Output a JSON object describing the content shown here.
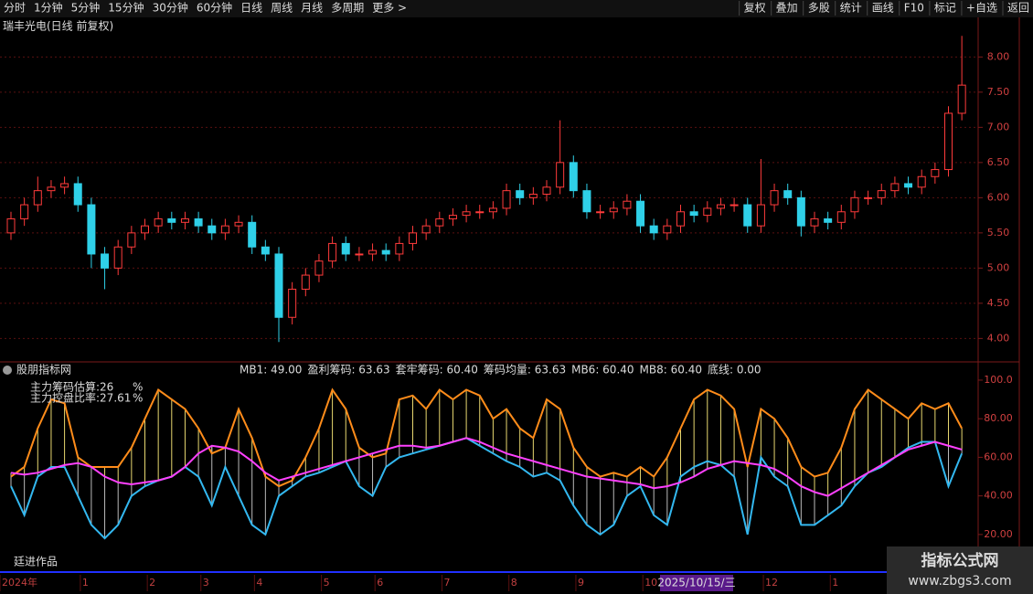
{
  "toolbar": {
    "periods": [
      "分时",
      "1分钟",
      "5分钟",
      "15分钟",
      "30分钟",
      "60分钟",
      "日线",
      "周线",
      "月线",
      "多周期",
      "更多 >"
    ],
    "active_period": 6,
    "actions": [
      "复权",
      "叠加",
      "多股",
      "统计",
      "画线",
      "F10",
      "标记",
      "+自选",
      "返回"
    ]
  },
  "chart_data": [
    {
      "type": "candlestick",
      "title": "瑞丰光电(日线 前复权)",
      "up_color": "#ff3b3b",
      "down_color": "#2fd0e8",
      "open": [
        5.5,
        5.7,
        5.9,
        6.1,
        6.15,
        6.2,
        5.9,
        5.2,
        5.0,
        5.3,
        5.5,
        5.6,
        5.7,
        5.65,
        5.7,
        5.6,
        5.5,
        5.6,
        5.65,
        5.3,
        5.2,
        4.3,
        4.7,
        4.9,
        5.1,
        5.35,
        5.2,
        5.2,
        5.25,
        5.2,
        5.35,
        5.5,
        5.6,
        5.7,
        5.75,
        5.8,
        5.8,
        5.85,
        6.1,
        6.0,
        6.05,
        6.15,
        6.5,
        6.1,
        5.8,
        5.8,
        5.85,
        5.95,
        5.6,
        5.5,
        5.6,
        5.8,
        5.75,
        5.85,
        5.9,
        5.9,
        5.6,
        5.9,
        6.1,
        6.0,
        5.6,
        5.7,
        5.65,
        5.8,
        6.0,
        6.0,
        6.1,
        6.2,
        6.15,
        6.3,
        6.4,
        7.2
      ],
      "high": [
        5.8,
        6.0,
        6.3,
        6.25,
        6.3,
        6.3,
        6.0,
        5.3,
        5.4,
        5.6,
        5.7,
        5.8,
        5.8,
        5.8,
        5.8,
        5.7,
        5.7,
        5.75,
        5.75,
        5.4,
        5.3,
        4.8,
        5.0,
        5.2,
        5.45,
        5.45,
        5.3,
        5.35,
        5.35,
        5.45,
        5.6,
        5.7,
        5.8,
        5.85,
        5.9,
        5.9,
        5.95,
        6.2,
        6.2,
        6.15,
        6.25,
        7.1,
        6.6,
        6.2,
        5.9,
        5.95,
        6.05,
        6.05,
        5.7,
        5.7,
        5.9,
        5.9,
        5.95,
        6.0,
        6.0,
        6.0,
        6.55,
        6.2,
        6.2,
        6.1,
        5.8,
        5.8,
        5.9,
        6.1,
        6.1,
        6.2,
        6.3,
        6.3,
        6.4,
        6.5,
        7.3,
        8.3
      ],
      "low": [
        5.4,
        5.6,
        5.8,
        6.0,
        6.05,
        5.8,
        5.0,
        4.7,
        4.9,
        5.2,
        5.4,
        5.5,
        5.55,
        5.55,
        5.5,
        5.4,
        5.4,
        5.5,
        5.2,
        5.1,
        3.95,
        4.2,
        4.6,
        4.8,
        5.0,
        5.1,
        5.1,
        5.1,
        5.1,
        5.1,
        5.25,
        5.4,
        5.5,
        5.6,
        5.65,
        5.7,
        5.7,
        5.75,
        5.9,
        5.9,
        5.95,
        6.05,
        6.0,
        5.7,
        5.7,
        5.7,
        5.75,
        5.5,
        5.4,
        5.4,
        5.5,
        5.65,
        5.65,
        5.75,
        5.8,
        5.5,
        5.5,
        5.8,
        5.9,
        5.45,
        5.5,
        5.55,
        5.55,
        5.7,
        5.9,
        5.9,
        6.0,
        6.05,
        6.05,
        6.2,
        6.3,
        7.1
      ],
      "close": [
        5.7,
        5.9,
        6.1,
        6.15,
        6.2,
        5.9,
        5.2,
        5.0,
        5.3,
        5.5,
        5.6,
        5.7,
        5.65,
        5.7,
        5.6,
        5.5,
        5.6,
        5.65,
        5.3,
        5.2,
        4.3,
        4.7,
        4.9,
        5.1,
        5.35,
        5.2,
        5.2,
        5.25,
        5.2,
        5.35,
        5.5,
        5.6,
        5.7,
        5.75,
        5.8,
        5.8,
        5.85,
        6.1,
        6.0,
        6.05,
        6.15,
        6.5,
        6.1,
        5.8,
        5.8,
        5.85,
        5.95,
        5.6,
        5.5,
        5.6,
        5.8,
        5.75,
        5.85,
        5.9,
        5.9,
        5.6,
        5.9,
        6.1,
        6.0,
        5.6,
        5.7,
        5.65,
        5.8,
        6.0,
        6.0,
        6.1,
        6.2,
        6.15,
        6.3,
        6.4,
        7.2,
        7.6
      ],
      "ylim": [
        3.68,
        8.55
      ],
      "yticks": [
        {
          "value": 4,
          "label": "4.00"
        },
        {
          "value": 4.5,
          "label": "4.50"
        },
        {
          "value": 5,
          "label": "5.00"
        },
        {
          "value": 5.5,
          "label": "5.50"
        },
        {
          "value": 6,
          "label": "6.00"
        },
        {
          "value": 6.5,
          "label": "6.50"
        },
        {
          "value": 7,
          "label": "7.00"
        },
        {
          "value": 7.5,
          "label": "7.50"
        },
        {
          "value": 8,
          "label": "8.00"
        }
      ],
      "grid": true
    },
    {
      "type": "line",
      "title": "股朋指标网",
      "legend": [
        {
          "text": "MB1: 49.00",
          "color": "#777777"
        },
        {
          "text": "盈利筹码: 63.63",
          "color": "#ff8c1a"
        },
        {
          "text": "套牢筹码: 60.40",
          "color": "#33b8f0"
        },
        {
          "text": "筹码均量: 63.63",
          "color": "#ff40ff"
        },
        {
          "text": "MB6: 60.40",
          "color": "#ff8c1a"
        },
        {
          "text": "MB8: 60.40",
          "color": "#33b8f0"
        },
        {
          "text": "底线: 0.00",
          "color": "#3050ff"
        }
      ],
      "annotations": [
        {
          "label": "主力筹码估算:",
          "value": 26,
          "unit": "%"
        },
        {
          "label": "主力控盘比率:",
          "value": 27.61,
          "unit": "%"
        }
      ],
      "categories": [
        "2024年",
        null,
        null,
        null,
        null,
        null,
        "1",
        null,
        null,
        null,
        null,
        "2",
        null,
        null,
        null,
        "3",
        null,
        null,
        null,
        "4",
        null,
        null,
        null,
        null,
        "5",
        null,
        null,
        null,
        "6",
        null,
        null,
        null,
        null,
        "7",
        null,
        null,
        null,
        null,
        "8",
        null,
        null,
        null,
        null,
        "9",
        null,
        null,
        null,
        null,
        "10",
        null,
        null,
        null,
        null,
        null,
        null,
        null,
        null,
        "12",
        null,
        null,
        null,
        null,
        "1",
        null,
        null,
        null,
        null,
        null,
        null,
        null,
        null,
        null
      ],
      "series": [
        {
          "name": "盈利筹码",
          "color": "#ff8c1a",
          "values": [
            50,
            55,
            75,
            90,
            88,
            60,
            55,
            55,
            55,
            65,
            80,
            95,
            90,
            85,
            75,
            62,
            65,
            85,
            70,
            50,
            45,
            48,
            60,
            75,
            95,
            85,
            65,
            60,
            62,
            90,
            92,
            85,
            95,
            90,
            95,
            92,
            80,
            85,
            75,
            70,
            90,
            85,
            65,
            55,
            50,
            52,
            50,
            55,
            50,
            60,
            75,
            90,
            95,
            92,
            85,
            55,
            85,
            80,
            70,
            55,
            50,
            52,
            65,
            85,
            95,
            90,
            85,
            80,
            88,
            85,
            88,
            75
          ]
        },
        {
          "name": "套牢筹码",
          "color": "#33b8f0",
          "values": [
            45,
            30,
            50,
            55,
            55,
            40,
            25,
            18,
            25,
            40,
            45,
            48,
            50,
            55,
            50,
            35,
            55,
            40,
            25,
            20,
            40,
            45,
            50,
            52,
            55,
            58,
            45,
            40,
            55,
            60,
            62,
            64,
            66,
            68,
            70,
            66,
            62,
            58,
            55,
            50,
            52,
            48,
            35,
            25,
            20,
            25,
            40,
            45,
            30,
            25,
            50,
            55,
            58,
            56,
            50,
            20,
            60,
            50,
            45,
            25,
            25,
            30,
            35,
            45,
            52,
            55,
            60,
            65,
            68,
            68,
            45,
            62
          ]
        },
        {
          "name": "筹码均量",
          "color": "#ff40ff",
          "values": [
            52,
            51,
            52,
            54,
            56,
            57,
            55,
            50,
            47,
            46,
            47,
            48,
            50,
            55,
            62,
            66,
            65,
            63,
            58,
            52,
            48,
            50,
            52,
            54,
            56,
            58,
            60,
            62,
            64,
            66,
            66,
            65,
            66,
            68,
            70,
            68,
            65,
            62,
            60,
            58,
            56,
            54,
            52,
            50,
            49,
            48,
            47,
            46,
            44,
            45,
            47,
            50,
            54,
            56,
            58,
            57,
            56,
            54,
            50,
            45,
            42,
            40,
            44,
            48,
            52,
            56,
            60,
            64,
            66,
            68,
            66,
            64
          ]
        }
      ],
      "ylim": [
        1,
        108.5
      ],
      "yticks": [
        {
          "value": 20,
          "label": "20.00"
        },
        {
          "value": 40,
          "label": "40.00"
        },
        {
          "value": 60,
          "label": "60.00"
        },
        {
          "value": 80,
          "label": "80.00"
        },
        {
          "value": 100,
          "label": "100.0"
        }
      ]
    }
  ],
  "author": "廷进作品",
  "cursor_date": "2025/10/15/三",
  "watermark": {
    "title": "指标公式网",
    "url": "www.zbgs3.com"
  }
}
